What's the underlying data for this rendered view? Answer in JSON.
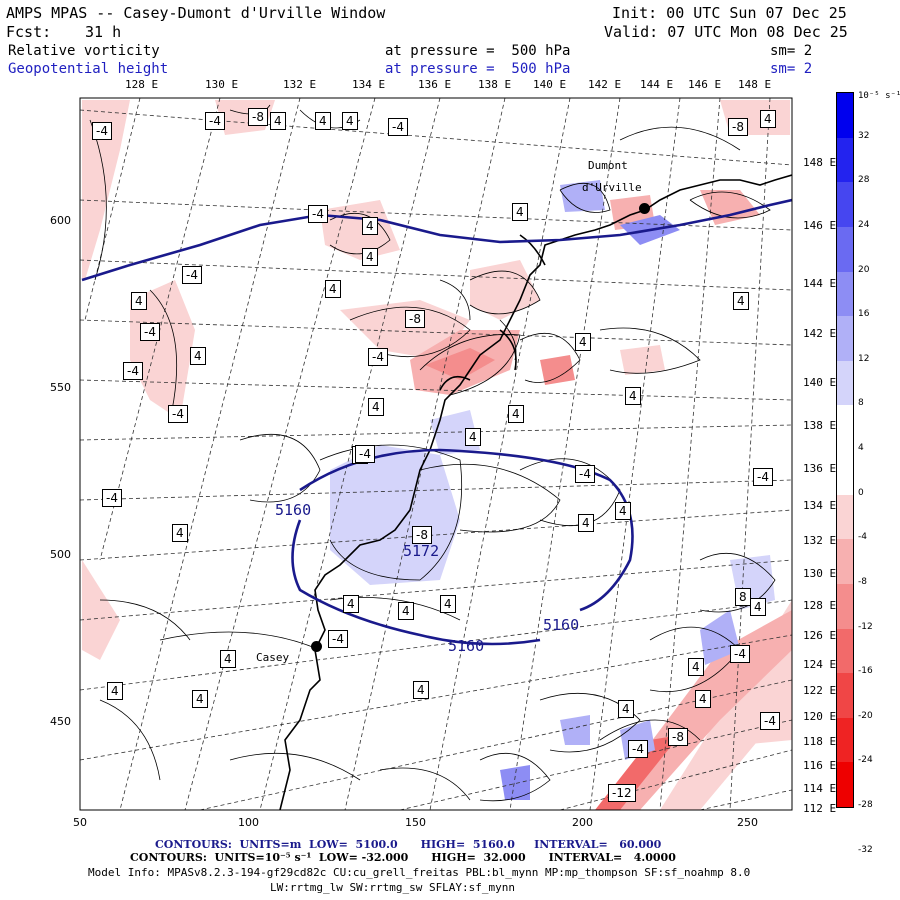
{
  "header": {
    "title": "AMPS MPAS -- Casey-Dumont d'Urville Window",
    "fcst_label": "Fcst:",
    "fcst_value": "31 h",
    "init": "Init: 00 UTC Sun 07 Dec 25",
    "valid": "Valid: 07 UTC Mon 08 Dec 25",
    "field1_name": "Relative vorticity",
    "field1_level": "at pressure =  500 hPa",
    "field1_sm": "sm= 2",
    "field2_name": "Geopotential height",
    "field2_level": "at pressure =  500 hPa",
    "field2_sm": "sm= 2"
  },
  "map": {
    "top_lon_labels": [
      "128 E",
      "130 E",
      "132 E",
      "134 E",
      "136 E",
      "138 E",
      "140 E",
      "142 E",
      "144 E",
      "146 E",
      "148 E"
    ],
    "right_lat_labels": [
      "148 E",
      "146 E",
      "144 E",
      "142 E",
      "140 E",
      "138 E",
      "136 E",
      "134 E",
      "132 E",
      "130 E",
      "128 E",
      "126 E",
      "124 E",
      "122 E",
      "120 E",
      "118 E",
      "116 E",
      "114 E",
      "112 E"
    ],
    "x_ticks": [
      "50",
      "100",
      "150",
      "200",
      "250"
    ],
    "y_ticks": [
      "600",
      "550",
      "500",
      "450"
    ],
    "place_names": [
      "Dumont",
      "d'Urville",
      "Casey"
    ],
    "height_labels": [
      "5160",
      "5172",
      "5160",
      "5160"
    ],
    "vort_labels": [
      "-4",
      "-4",
      "-8",
      "4",
      "4",
      "4",
      "-4",
      "-8",
      "4",
      "-4",
      "4",
      "4",
      "-4",
      "4",
      "4",
      "-4",
      "-8",
      "-4",
      "-4",
      "4",
      "4",
      "4",
      "-4",
      "4",
      "4",
      "4",
      "-4",
      "4",
      "4",
      "4",
      "4",
      "4",
      "-4",
      "4",
      "4",
      "-4",
      "4",
      "4",
      "4",
      "4",
      "4",
      "4",
      "-4",
      "4",
      "4",
      "4",
      "-4",
      "4",
      "-8",
      "-4",
      "-4",
      "-4",
      "-8",
      "-12",
      "8"
    ]
  },
  "colorbar": {
    "unit": "10⁻⁵ s⁻¹",
    "labels": [
      "32",
      "28",
      "24",
      "20",
      "16",
      "12",
      "8",
      "4",
      "0",
      "-4",
      "-8",
      "-12",
      "-16",
      "-20",
      "-24",
      "-28",
      "-32"
    ],
    "colors": [
      "#0000ee",
      "#2323ef",
      "#4646f0",
      "#6a6af2",
      "#8d8df4",
      "#b0b0f7",
      "#d4d4fa",
      "#ffffff",
      "#ffffff",
      "#fad4d4",
      "#f7b0b0",
      "#f48d8d",
      "#f26a6a",
      "#f04646",
      "#ef2323",
      "#ee0000"
    ]
  },
  "footer": {
    "line1": "CONTOURS:  UNITS=m  LOW=  5100.0      HIGH=  5160.0     INTERVAL=   60.000",
    "line2": "CONTOURS:  UNITS=10⁻⁵ s⁻¹  LOW= -32.000      HIGH=  32.000      INTERVAL=   4.0000",
    "line3": "Model Info: MPASv8.2.3-194-gf29cd82c CU:cu_grell_freitas PBL:bl_mynn MP:mp_thompson SF:sf_noahmp 8.0",
    "line4": "LW:rrtmg_lw SW:rrtmg_sw SFLAY:sf_mynn"
  }
}
